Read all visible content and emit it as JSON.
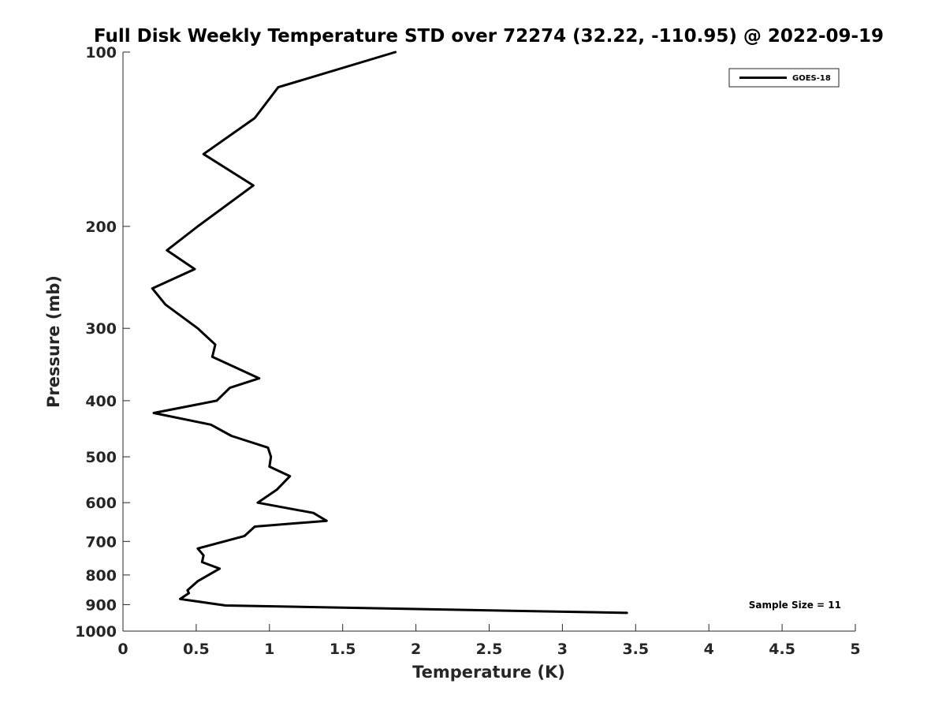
{
  "chart_data": {
    "type": "line",
    "title": "Full Disk Weekly Temperature STD over 72274 (32.22, -110.95) @ 2022-09-19",
    "xlabel": "Temperature (K)",
    "ylabel": "Pressure (mb)",
    "xlim": [
      0,
      5
    ],
    "ylim": [
      100,
      1000
    ],
    "y_scale": "log",
    "y_reversed": true,
    "grid": false,
    "legend_position": "top-right",
    "x_ticks": [
      0,
      0.5,
      1,
      1.5,
      2,
      2.5,
      3,
      3.5,
      4,
      4.5,
      5
    ],
    "x_tick_labels": [
      "0",
      "0.5",
      "1",
      "1.5",
      "2",
      "2.5",
      "3",
      "3.5",
      "4",
      "4.5",
      "5"
    ],
    "y_ticks": [
      100,
      200,
      300,
      400,
      500,
      600,
      700,
      800,
      900,
      1000
    ],
    "y_tick_labels": [
      "100",
      "200",
      "300",
      "400",
      "500",
      "600",
      "700",
      "800",
      "900",
      "1000"
    ],
    "series": [
      {
        "name": "GOES-18",
        "color": "#000000",
        "points": [
          [
            1.86,
            100
          ],
          [
            1.06,
            115
          ],
          [
            0.9,
            130
          ],
          [
            0.55,
            150
          ],
          [
            0.89,
            170
          ],
          [
            0.51,
            200
          ],
          [
            0.3,
            220
          ],
          [
            0.49,
            237
          ],
          [
            0.2,
            256
          ],
          [
            0.29,
            273
          ],
          [
            0.51,
            300
          ],
          [
            0.63,
            320
          ],
          [
            0.61,
            336
          ],
          [
            0.93,
            366
          ],
          [
            0.73,
            380
          ],
          [
            0.64,
            400
          ],
          [
            0.21,
            420
          ],
          [
            0.6,
            440
          ],
          [
            0.74,
            460
          ],
          [
            0.99,
            482
          ],
          [
            1.01,
            500
          ],
          [
            1.0,
            520
          ],
          [
            1.14,
            540
          ],
          [
            1.05,
            570
          ],
          [
            0.92,
            600
          ],
          [
            1.3,
            625
          ],
          [
            1.39,
            645
          ],
          [
            0.9,
            660
          ],
          [
            0.83,
            685
          ],
          [
            0.51,
            720
          ],
          [
            0.55,
            740
          ],
          [
            0.54,
            760
          ],
          [
            0.66,
            780
          ],
          [
            0.51,
            820
          ],
          [
            0.44,
            850
          ],
          [
            0.45,
            860
          ],
          [
            0.39,
            880
          ],
          [
            0.7,
            903
          ],
          [
            3.44,
            930
          ]
        ]
      }
    ],
    "annotations": [
      {
        "text": "Sample Size = 11",
        "position": "bottom-right"
      }
    ]
  }
}
